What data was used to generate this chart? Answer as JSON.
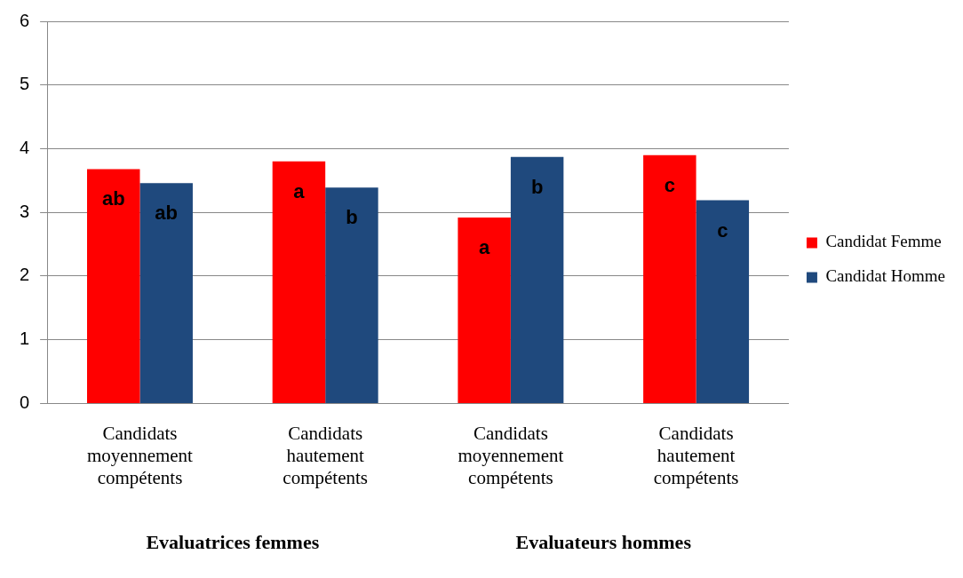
{
  "chart_data": {
    "type": "bar",
    "categories": [
      "Candidats moyennement compétents",
      "Candidats hautement compétents",
      "Candidats moyennement compétents",
      "Candidats hautement compétents"
    ],
    "series": [
      {
        "name": "Candidat Femme",
        "color": "#ff0000",
        "values": [
          3.68,
          3.8,
          2.92,
          3.9
        ],
        "value_labels": [
          "ab",
          "a",
          "a",
          "c"
        ]
      },
      {
        "name": "Candidat Homme",
        "color": "#1f497d",
        "values": [
          3.46,
          3.39,
          3.87,
          3.19
        ],
        "value_labels": [
          "ab",
          "b",
          "b",
          "c"
        ]
      }
    ],
    "ylim": [
      0,
      6
    ],
    "yticks": [
      0,
      1,
      2,
      3,
      4,
      5,
      6
    ],
    "grid": "y",
    "legend": "right",
    "annotations": [
      "Evaluatrices femmes",
      "Evaluateurs hommes"
    ]
  }
}
